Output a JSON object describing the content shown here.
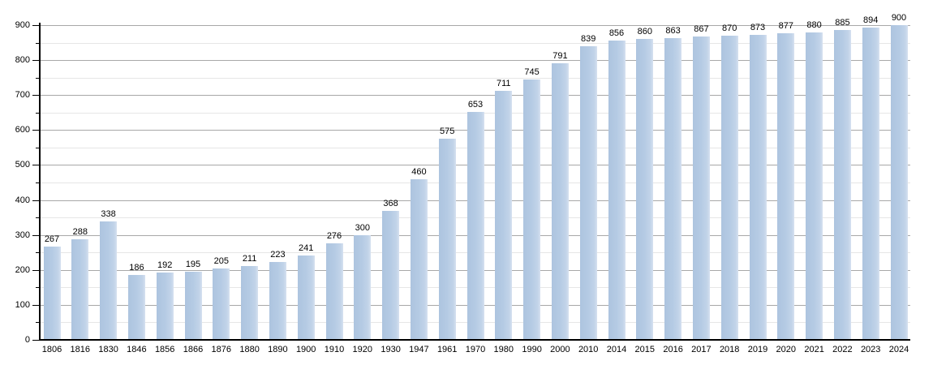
{
  "chart_data": {
    "type": "bar",
    "title": "",
    "xlabel": "",
    "ylabel": "",
    "categories": [
      "1806",
      "1816",
      "1830",
      "1846",
      "1856",
      "1866",
      "1876",
      "1880",
      "1890",
      "1900",
      "1910",
      "1920",
      "1930",
      "1947",
      "1961",
      "1970",
      "1980",
      "1990",
      "2000",
      "2010",
      "2014",
      "2015",
      "2016",
      "2017",
      "2018",
      "2019",
      "2020",
      "2021",
      "2022",
      "2023",
      "2024"
    ],
    "values": [
      267,
      288,
      338,
      186,
      192,
      195,
      205,
      211,
      223,
      241,
      276,
      300,
      368,
      460,
      575,
      653,
      711,
      745,
      791,
      839,
      856,
      860,
      863,
      867,
      870,
      873,
      877,
      880,
      885,
      894,
      900
    ],
    "value_labels_shown": true,
    "ylim": [
      0,
      900
    ],
    "y_ticks": [
      0,
      100,
      200,
      300,
      400,
      500,
      600,
      700,
      800,
      900
    ],
    "y_major_step": 100,
    "y_minor_step": 50,
    "grid": true,
    "legend": "none",
    "colors": {
      "bar_fill": "#b5cbe4",
      "bar_fill_light": "#d6e1f0",
      "major_gridline": "#a8a8a8",
      "minor_gridline": "#e6e6e6",
      "axis": "#000000",
      "text": "#000000",
      "background": "#ffffff"
    }
  }
}
